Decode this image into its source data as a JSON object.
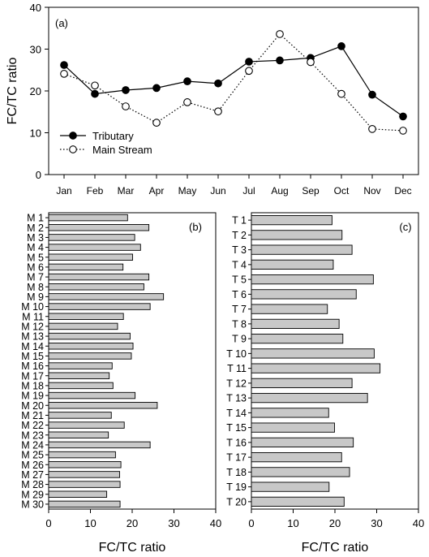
{
  "colors": {
    "bar_fill": "#c8c8c8",
    "line": "#000000",
    "background": "#ffffff"
  },
  "chart_data": [
    {
      "type": "line",
      "panel_label": "(a)",
      "xlabel": "",
      "ylabel": "FC/TC ratio",
      "ylim": [
        0,
        40
      ],
      "yticks": [
        0,
        10,
        20,
        30,
        40
      ],
      "categories": [
        "Jan",
        "Feb",
        "Mar",
        "Apr",
        "May",
        "Jun",
        "Jul",
        "Aug",
        "Sep",
        "Oct",
        "Nov",
        "Dec"
      ],
      "legend_position": "bottom-left",
      "grid": false,
      "series": [
        {
          "name": "Tributary",
          "marker": "filled-circle",
          "line_style": "solid",
          "values": [
            26.2,
            19.3,
            20.2,
            20.7,
            22.3,
            21.8,
            27.0,
            27.3,
            27.9,
            30.7,
            19.1,
            13.9
          ]
        },
        {
          "name": "Main Stream",
          "marker": "open-circle",
          "line_style": "dotted",
          "values": [
            24.1,
            21.3,
            16.3,
            12.4,
            17.3,
            15.1,
            24.8,
            33.6,
            26.9,
            19.3,
            10.9,
            10.5
          ]
        }
      ]
    },
    {
      "type": "bar",
      "orientation": "horizontal",
      "panel_label": "(b)",
      "xlabel": "FC/TC ratio",
      "ylabel": "",
      "xlim": [
        0,
        40
      ],
      "xticks": [
        0,
        10,
        20,
        30,
        40
      ],
      "grid": false,
      "categories": [
        "M 1",
        "M 2",
        "M 3",
        "M 4",
        "M 5",
        "M 6",
        "M 7",
        "M 8",
        "M 9",
        "M 10",
        "M 11",
        "M 12",
        "M 13",
        "M 14",
        "M 15",
        "M 16",
        "M 17",
        "M 18",
        "M 19",
        "M 20",
        "M 21",
        "M 22",
        "M 23",
        "M 24",
        "M 25",
        "M 26",
        "M 27",
        "M 28",
        "M 29",
        "M 30"
      ],
      "values": [
        18.9,
        24.0,
        20.6,
        22.0,
        20.1,
        17.8,
        24.0,
        22.8,
        27.5,
        24.3,
        17.9,
        16.5,
        19.5,
        20.2,
        19.8,
        15.2,
        14.5,
        15.4,
        20.7,
        26.0,
        15.0,
        18.1,
        14.3,
        24.3,
        16.0,
        17.3,
        17.0,
        17.1,
        13.9,
        17.1
      ]
    },
    {
      "type": "bar",
      "orientation": "horizontal",
      "panel_label": "(c)",
      "xlabel": "FC/TC ratio",
      "ylabel": "",
      "xlim": [
        0,
        40
      ],
      "xticks": [
        0,
        10,
        20,
        30,
        40
      ],
      "grid": false,
      "categories": [
        "T 1",
        "T 2",
        "T 3",
        "T 4",
        "T 5",
        "T 6",
        "T 7",
        "T 8",
        "T 9",
        "T 10",
        "T 11",
        "T 12",
        "T 13",
        "T 14",
        "T 15",
        "T 16",
        "T 17",
        "T 18",
        "T 19",
        "T 20"
      ],
      "values": [
        19.3,
        21.7,
        24.1,
        19.6,
        29.2,
        25.1,
        18.2,
        21.0,
        21.9,
        29.4,
        30.8,
        24.1,
        27.8,
        18.5,
        19.9,
        24.4,
        21.6,
        23.5,
        18.6,
        22.2
      ]
    }
  ]
}
